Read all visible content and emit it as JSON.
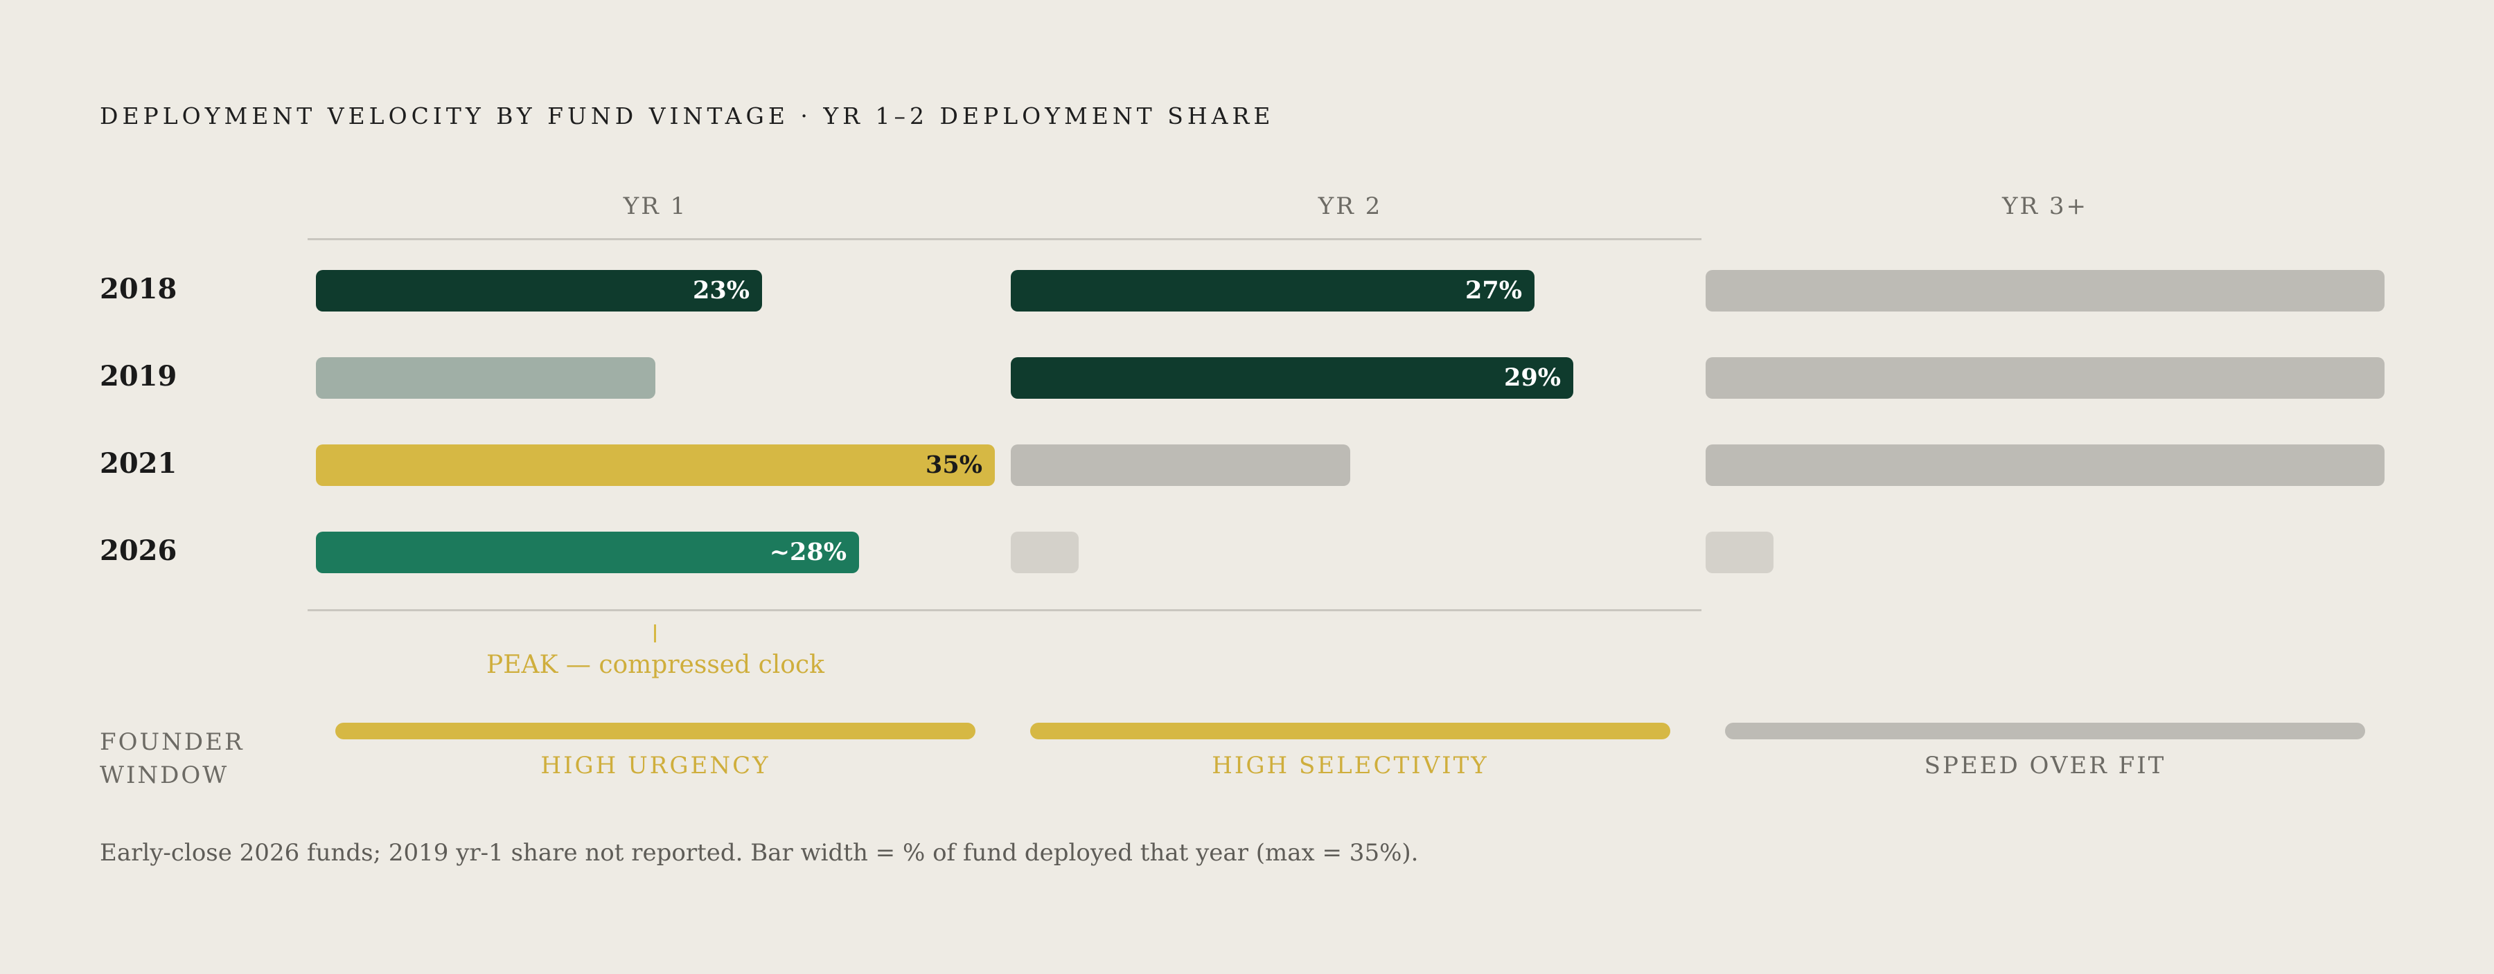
{
  "chart_data": {
    "type": "bar",
    "title": "DEPLOYMENT VELOCITY BY FUND VINTAGE · YR 1–2 DEPLOYMENT SHARE",
    "columns": [
      "YR 1",
      "YR 2",
      "YR 3+"
    ],
    "scale_max": 35,
    "rows": [
      {
        "vintage": "2018",
        "cells": [
          {
            "value": 23,
            "label": "23%",
            "color": "#0f3b2d",
            "text_color": "#ffffff"
          },
          {
            "value": 27,
            "label": "27%",
            "color": "#0f3b2d",
            "text_color": "#ffffff"
          },
          {
            "value": 35,
            "label": "",
            "color": "#bdbbb5"
          }
        ]
      },
      {
        "vintage": "2019",
        "cells": [
          {
            "value": 17.5,
            "label": "",
            "color": "#a0afa6"
          },
          {
            "value": 29,
            "label": "29%",
            "color": "#0f3b2d",
            "text_color": "#ffffff"
          },
          {
            "value": 35,
            "label": "",
            "color": "#bdbbb5"
          }
        ]
      },
      {
        "vintage": "2021",
        "cells": [
          {
            "value": 35,
            "label": "35%",
            "color": "#d6b844",
            "text_color": "#1a1a1a"
          },
          {
            "value": 17.5,
            "label": "",
            "color": "#bdbbb5"
          },
          {
            "value": 35,
            "label": "",
            "color": "#bdbbb5"
          }
        ]
      },
      {
        "vintage": "2026",
        "cells": [
          {
            "value": 28,
            "label": "~28%",
            "color": "#1c7a5c",
            "text_color": "#ffffff"
          },
          {
            "value": 3.5,
            "label": "",
            "color": "#d4d1ca"
          },
          {
            "value": 3.5,
            "label": "",
            "color": "#d4d1ca"
          }
        ]
      }
    ],
    "peak_annotation": "PEAK — compressed clock",
    "founder_window": {
      "label": "FOUNDER WINDOW",
      "items": [
        {
          "text": "HIGH URGENCY",
          "color": "#d6b844",
          "text_color": "#cfae3c"
        },
        {
          "text": "HIGH SELECTIVITY",
          "color": "#d6b844",
          "text_color": "#cfae3c"
        },
        {
          "text": "SPEED OVER FIT",
          "color": "#bdbbb5",
          "text_color": "#6c6a64"
        }
      ]
    },
    "footnote": "Early-close 2026 funds; 2019 yr-1 share not reported. Bar width = % of fund deployed that year (max = 35%)."
  }
}
